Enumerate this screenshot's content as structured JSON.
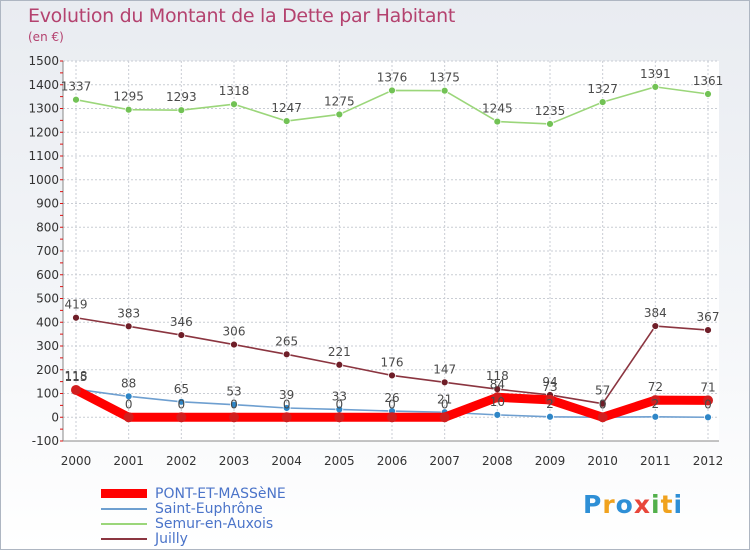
{
  "title": "Evolution du Montant de la Dette par Habitant",
  "subtitle": "(en €)",
  "logo": {
    "letters": [
      "P",
      "r",
      "o",
      "x",
      "i",
      "t",
      "i"
    ],
    "colors": [
      "#2e8fd6",
      "#f0a21e",
      "#2e8fd6",
      "#e8463a",
      "#52b04b",
      "#f0a21e",
      "#2e8fd6"
    ]
  },
  "chart_data": {
    "type": "line",
    "x": [
      "2000",
      "2001",
      "2002",
      "2003",
      "2004",
      "2005",
      "2006",
      "2007",
      "2008",
      "2009",
      "2010",
      "2011",
      "2012"
    ],
    "ylim": [
      -100,
      1500
    ],
    "yticks": [
      "-100",
      "0",
      "100",
      "200",
      "300",
      "400",
      "500",
      "600",
      "700",
      "800",
      "900",
      "1000",
      "1100",
      "1200",
      "1300",
      "1400",
      "1500"
    ],
    "grid": true,
    "legend_position": "bottom-left",
    "series": [
      {
        "name": "PONT-ET-MASSèNE",
        "color": "#ff0000",
        "marker": "#d21e1e",
        "values": [
          115,
          0,
          0,
          0,
          0,
          0,
          0,
          0,
          84,
          73,
          0,
          72,
          71
        ],
        "labels": [
          "115",
          "0",
          "0",
          "0",
          "0",
          "0",
          "0",
          "0",
          "84",
          "73",
          "0",
          "72",
          "71"
        ]
      },
      {
        "name": "Saint-Euphrône",
        "color": "#6e9fd0",
        "marker": "#2e86c7",
        "values": [
          118,
          88,
          65,
          53,
          39,
          33,
          26,
          21,
          10,
          2,
          0,
          2,
          0
        ],
        "labels": [
          "118",
          "88",
          "65",
          "53",
          "39",
          "33",
          "26",
          "21",
          "10",
          "2",
          "0",
          "2",
          "0"
        ]
      },
      {
        "name": "Semur-en-Auxois",
        "color": "#9bd67a",
        "marker": "#72c255",
        "values": [
          1337,
          1295,
          1293,
          1318,
          1247,
          1275,
          1376,
          1375,
          1245,
          1235,
          1327,
          1391,
          1361
        ],
        "labels": [
          "1337",
          "1295",
          "1293",
          "1318",
          "1247",
          "1275",
          "1376",
          "1375",
          "1245",
          "1235",
          "1327",
          "1391",
          "1361"
        ]
      },
      {
        "name": "Juilly",
        "color": "#8b3540",
        "marker": "#6f1e28",
        "values": [
          419,
          383,
          346,
          306,
          265,
          221,
          176,
          147,
          118,
          94,
          57,
          384,
          367
        ],
        "labels": [
          "419",
          "383",
          "346",
          "306",
          "265",
          "221",
          "176",
          "147",
          "118",
          "94",
          "57",
          "384",
          "367"
        ]
      }
    ]
  }
}
